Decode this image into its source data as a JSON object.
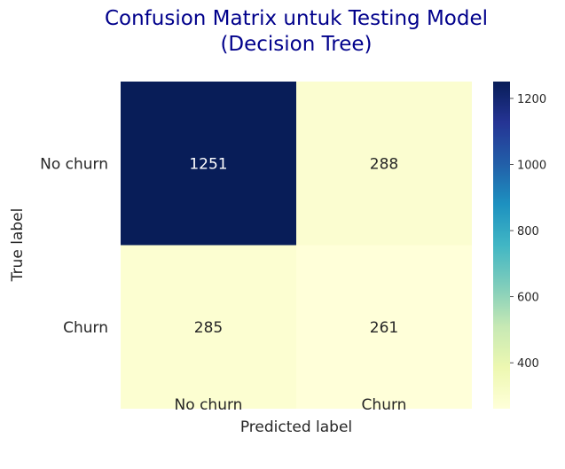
{
  "chart_data": {
    "type": "heatmap",
    "title_lines": [
      "Confusion Matrix untuk Testing Model",
      "(Decision Tree)"
    ],
    "xlabel": "Predicted label",
    "ylabel": "True label",
    "x_categories": [
      "No churn",
      "Churn"
    ],
    "y_categories": [
      "No churn",
      "Churn"
    ],
    "values": [
      [
        1251,
        288
      ],
      [
        285,
        261
      ]
    ],
    "colormap": "YlGnBu",
    "colorbar": {
      "range": [
        261,
        1251
      ],
      "ticks": [
        400,
        600,
        800,
        1000,
        1200
      ]
    },
    "annotation_colors": {
      "on_dark": "#ffffff",
      "on_light": "#262626"
    }
  }
}
